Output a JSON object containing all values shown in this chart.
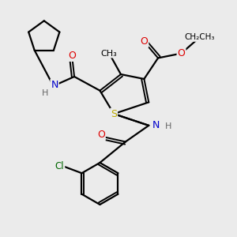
{
  "bg_color": "#ebebeb",
  "atom_colors": {
    "C": "#000000",
    "N": "#0000cc",
    "O": "#dd0000",
    "S": "#bbaa00",
    "Cl": "#006600",
    "H": "#666666"
  },
  "bond_color": "#000000"
}
